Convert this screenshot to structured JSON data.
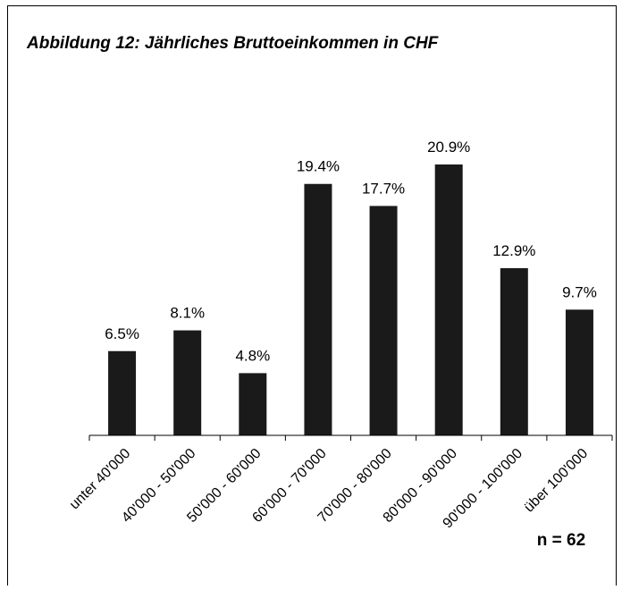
{
  "chart_data": {
    "type": "bar",
    "title": "Abbildung 12: Jährliches Bruttoeinkommen in CHF",
    "categories": [
      "unter 40'000",
      "40'000 - 50'000",
      "50'000 - 60'000",
      "60'000 - 70'000",
      "70'000 - 80'000",
      "80'000 - 90'000",
      "90'000 - 100'000",
      "über 100'000"
    ],
    "values": [
      6.5,
      8.1,
      4.8,
      19.4,
      17.7,
      20.9,
      12.9,
      9.7
    ],
    "value_labels": [
      "6.5%",
      "8.1%",
      "4.8%",
      "19.4%",
      "17.7%",
      "20.9%",
      "12.9%",
      "9.7%"
    ],
    "color": "#1a1a1a",
    "annotation": "n = 62"
  }
}
